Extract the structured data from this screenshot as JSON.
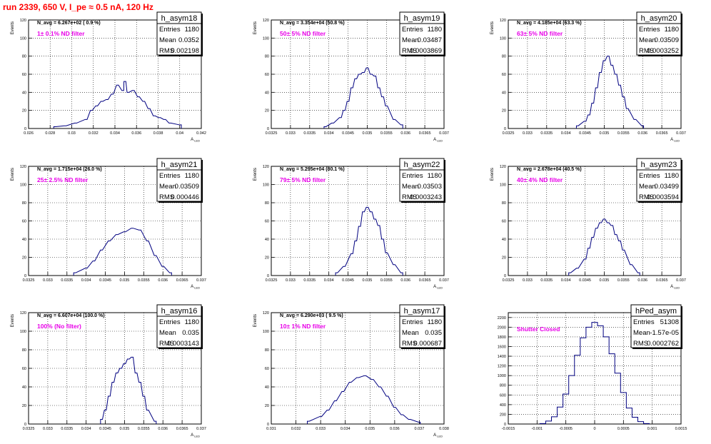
{
  "title": "run 2339,   650 V, I_pe ≈ 0.5 nA, 120 Hz",
  "panels": [
    {
      "id": "h_asym18",
      "name": "h_asym18",
      "entries": "1180",
      "mean": "0.0352",
      "rms": "0.002198",
      "navg": "N_avg = 6.267e+02 ( 0.9 %)",
      "filter": "1± 0.1% ND filter",
      "xlabel": "A_LED",
      "ylabel": "Events",
      "xticks": [
        "0.026",
        "0.028",
        "0.03",
        "0.032",
        "0.034",
        "0.036",
        "0.038",
        "0.04",
        "0.042"
      ],
      "yticks": [
        "0",
        "20",
        "40",
        "60",
        "80",
        "100",
        "120"
      ]
    },
    {
      "id": "h_asym19",
      "name": "h_asym19",
      "entries": "1180",
      "mean": "0.03487",
      "rms": "0.0003869",
      "navg": "N_avg = 3.354e+04 (50.8 %)",
      "filter": "50± 5% ND filter",
      "xlabel": "A_LED",
      "ylabel": "Events",
      "xticks": [
        "0.0325",
        "0.033",
        "0.0335",
        "0.034",
        "0.0345",
        "0.035",
        "0.0355",
        "0.036",
        "0.0365",
        "0.037"
      ],
      "yticks": [
        "0",
        "20",
        "40",
        "60",
        "80",
        "100",
        "120"
      ]
    },
    {
      "id": "h_asym20",
      "name": "h_asym20",
      "entries": "1180",
      "mean": "0.03509",
      "rms": "0.0003252",
      "navg": "N_avg = 4.185e+04 (63.3 %)",
      "filter": "63± 5% ND filter",
      "xlabel": "A_LED",
      "ylabel": "Events",
      "xticks": [
        "0.0325",
        "0.033",
        "0.0335",
        "0.034",
        "0.0345",
        "0.035",
        "0.0355",
        "0.036",
        "0.0365",
        "0.037"
      ],
      "yticks": [
        "0",
        "20",
        "40",
        "60",
        "80",
        "100",
        "120"
      ]
    },
    {
      "id": "h_asym21",
      "name": "h_asym21",
      "entries": "1180",
      "mean": "0.03509",
      "rms": "0.000446",
      "navg": "N_avg = 1.715e+04 (26.0 %)",
      "filter": "25± 2.5% ND filter",
      "xlabel": "A_LED",
      "ylabel": "Events",
      "xticks": [
        "0.0325",
        "0.033",
        "0.0335",
        "0.034",
        "0.0345",
        "0.035",
        "0.0355",
        "0.036",
        "0.0365",
        "0.037"
      ],
      "yticks": [
        "0",
        "20",
        "40",
        "60",
        "80",
        "100",
        "120"
      ]
    },
    {
      "id": "h_asym22",
      "name": "h_asym22",
      "entries": "1180",
      "mean": "0.03503",
      "rms": "0.0003243",
      "navg": "N_avg = 5.295e+04 (80.1 %)",
      "filter": "79± 5% ND filter",
      "xlabel": "A_LED",
      "ylabel": "Events",
      "xticks": [
        "0.0325",
        "0.033",
        "0.0335",
        "0.034",
        "0.0345",
        "0.035",
        "0.0355",
        "0.036",
        "0.0365",
        "0.037"
      ],
      "yticks": [
        "0",
        "20",
        "40",
        "60",
        "80",
        "100",
        "120"
      ]
    },
    {
      "id": "h_asym23",
      "name": "h_asym23",
      "entries": "1180",
      "mean": "0.03499",
      "rms": "0.0003594",
      "navg": "N_avg = 2.678e+04 (40.5 %)",
      "filter": "40± 4% ND filter",
      "xlabel": "A_LED",
      "ylabel": "Events",
      "xticks": [
        "0.0325",
        "0.033",
        "0.0335",
        "0.034",
        "0.0345",
        "0.035",
        "0.0355",
        "0.036",
        "0.0365",
        "0.037"
      ],
      "yticks": [
        "0",
        "20",
        "40",
        "60",
        "80",
        "100",
        "120"
      ]
    },
    {
      "id": "h_asym16",
      "name": "h_asym16",
      "entries": "1180",
      "mean": "0.035",
      "rms": "0.0003143",
      "navg": "N_avg = 6.607e+04 (100.0 %)",
      "filter": "100% (No filter)",
      "xlabel": "A_LED",
      "ylabel": "Events",
      "xticks": [
        "0.0325",
        "0.033",
        "0.0335",
        "0.034",
        "0.0345",
        "0.035",
        "0.0355",
        "0.036",
        "0.0365",
        "0.037"
      ],
      "yticks": [
        "0",
        "20",
        "40",
        "60",
        "80",
        "100",
        "120"
      ]
    },
    {
      "id": "h_asym17",
      "name": "h_asym17",
      "entries": "1180",
      "mean": "0.035",
      "rms": "0.000687",
      "navg": "N_avg = 6.290e+03 ( 9.5 %)",
      "filter": "10± 1% ND filter",
      "xlabel": "A_LED",
      "ylabel": "Events",
      "xticks": [
        "0.031",
        "0.032",
        "0.033",
        "0.034",
        "0.035",
        "0.036",
        "0.037",
        "0.038"
      ],
      "yticks": [
        "0",
        "20",
        "40",
        "60",
        "80",
        "100",
        "120"
      ]
    },
    {
      "id": "hPed_asym",
      "name": "hPed_asym",
      "entries": "51308",
      "mean": "-1.57e-05",
      "rms": "0.0002762",
      "navg": "",
      "filter": "Shutter Closed",
      "xlabel": "",
      "ylabel": "",
      "xticks": [
        "-0.0015",
        "-0.001",
        "-0.0005",
        "0",
        "0.0005",
        "0.001",
        "0.0015"
      ],
      "yticks": [
        "0",
        "200",
        "400",
        "600",
        "800",
        "1000",
        "1200",
        "1400",
        "1600",
        "1800",
        "2000",
        "2200"
      ]
    }
  ],
  "chart_data": [
    {
      "type": "histogram",
      "name": "h_asym18",
      "xlim": [
        0.026,
        0.0425
      ],
      "ylim": [
        0,
        120
      ],
      "grid": true,
      "x": [
        0.0285,
        0.0295,
        0.0305,
        0.0315,
        0.032,
        0.0325,
        0.033,
        0.0335,
        0.034,
        0.0345,
        0.035,
        0.0352,
        0.0355,
        0.036,
        0.0365,
        0.037,
        0.0375,
        0.038,
        0.0385,
        0.039,
        0.0395,
        0.0405
      ],
      "values": [
        2,
        3,
        6,
        10,
        20,
        25,
        30,
        32,
        38,
        48,
        42,
        52,
        40,
        42,
        35,
        30,
        22,
        14,
        12,
        10,
        6,
        4
      ]
    },
    {
      "type": "histogram",
      "name": "h_asym19",
      "xlim": [
        0.0325,
        0.037
      ],
      "ylim": [
        0,
        120
      ],
      "grid": true,
      "x": [
        0.0339,
        0.0341,
        0.0343,
        0.0344,
        0.0345,
        0.0346,
        0.0347,
        0.0348,
        0.0349,
        0.035,
        0.0351,
        0.0352,
        0.0353,
        0.0354,
        0.0355,
        0.0357,
        0.0359
      ],
      "values": [
        2,
        6,
        12,
        20,
        30,
        45,
        55,
        60,
        62,
        67,
        60,
        58,
        45,
        35,
        25,
        10,
        4
      ]
    },
    {
      "type": "histogram",
      "name": "h_asym20",
      "xlim": [
        0.0325,
        0.037
      ],
      "ylim": [
        0,
        120
      ],
      "grid": true,
      "x": [
        0.0343,
        0.0345,
        0.0346,
        0.0347,
        0.0348,
        0.0349,
        0.035,
        0.0351,
        0.0352,
        0.0353,
        0.0354,
        0.0355,
        0.0356,
        0.0358,
        0.036
      ],
      "values": [
        3,
        8,
        15,
        28,
        45,
        62,
        75,
        80,
        70,
        60,
        48,
        35,
        22,
        10,
        3
      ]
    },
    {
      "type": "histogram",
      "name": "h_asym21",
      "xlim": [
        0.0325,
        0.037
      ],
      "ylim": [
        0,
        120
      ],
      "grid": true,
      "x": [
        0.0337,
        0.034,
        0.0342,
        0.0344,
        0.0346,
        0.0348,
        0.035,
        0.0352,
        0.0354,
        0.0356,
        0.0358,
        0.036,
        0.0362
      ],
      "values": [
        3,
        8,
        16,
        28,
        38,
        45,
        48,
        52,
        50,
        38,
        22,
        10,
        3
      ]
    },
    {
      "type": "histogram",
      "name": "h_asym22",
      "xlim": [
        0.0325,
        0.037
      ],
      "ylim": [
        0,
        120
      ],
      "grid": true,
      "x": [
        0.0342,
        0.0344,
        0.0346,
        0.0347,
        0.0348,
        0.0349,
        0.035,
        0.0351,
        0.0352,
        0.0353,
        0.0354,
        0.0355,
        0.0357,
        0.0359
      ],
      "values": [
        3,
        10,
        24,
        38,
        54,
        70,
        75,
        70,
        62,
        55,
        40,
        25,
        12,
        3
      ]
    },
    {
      "type": "histogram",
      "name": "h_asym23",
      "xlim": [
        0.0325,
        0.037
      ],
      "ylim": [
        0,
        120
      ],
      "grid": true,
      "x": [
        0.0341,
        0.0343,
        0.0345,
        0.0346,
        0.0347,
        0.0348,
        0.0349,
        0.035,
        0.0351,
        0.0352,
        0.0353,
        0.0354,
        0.0355,
        0.0357,
        0.0359
      ],
      "values": [
        3,
        8,
        18,
        30,
        42,
        52,
        58,
        62,
        58,
        55,
        45,
        38,
        28,
        12,
        3
      ]
    },
    {
      "type": "histogram",
      "name": "h_asym16",
      "xlim": [
        0.0325,
        0.037
      ],
      "ylim": [
        0,
        120
      ],
      "grid": true,
      "x": [
        0.0344,
        0.0345,
        0.0346,
        0.0347,
        0.0348,
        0.0349,
        0.035,
        0.0351,
        0.0352,
        0.0353,
        0.0354,
        0.0355,
        0.0356,
        0.0358
      ],
      "values": [
        5,
        15,
        30,
        45,
        55,
        60,
        65,
        70,
        72,
        55,
        45,
        30,
        15,
        3
      ]
    },
    {
      "type": "histogram",
      "name": "h_asym17",
      "xlim": [
        0.031,
        0.038
      ],
      "ylim": [
        0,
        120
      ],
      "grid": true,
      "x": [
        0.0325,
        0.033,
        0.0333,
        0.0336,
        0.0339,
        0.0342,
        0.0345,
        0.0348,
        0.0351,
        0.0354,
        0.0357,
        0.036,
        0.0363,
        0.0366,
        0.037
      ],
      "values": [
        3,
        8,
        15,
        25,
        35,
        45,
        50,
        52,
        48,
        40,
        30,
        18,
        10,
        5,
        2
      ]
    },
    {
      "type": "histogram",
      "name": "hPed_asym",
      "xlim": [
        -0.0015,
        0.0015
      ],
      "ylim": [
        0,
        2300
      ],
      "grid": true,
      "x": [
        -0.0009,
        -0.0008,
        -0.0007,
        -0.0006,
        -0.0005,
        -0.0004,
        -0.0003,
        -0.0002,
        -0.0001,
        0,
        0.0001,
        0.0002,
        0.0003,
        0.0004,
        0.0005,
        0.0006,
        0.0007,
        0.0008,
        0.0009
      ],
      "values": [
        10,
        60,
        150,
        350,
        620,
        1000,
        1420,
        1780,
        2000,
        2100,
        2030,
        1800,
        1450,
        1050,
        650,
        330,
        140,
        50,
        10
      ]
    }
  ]
}
